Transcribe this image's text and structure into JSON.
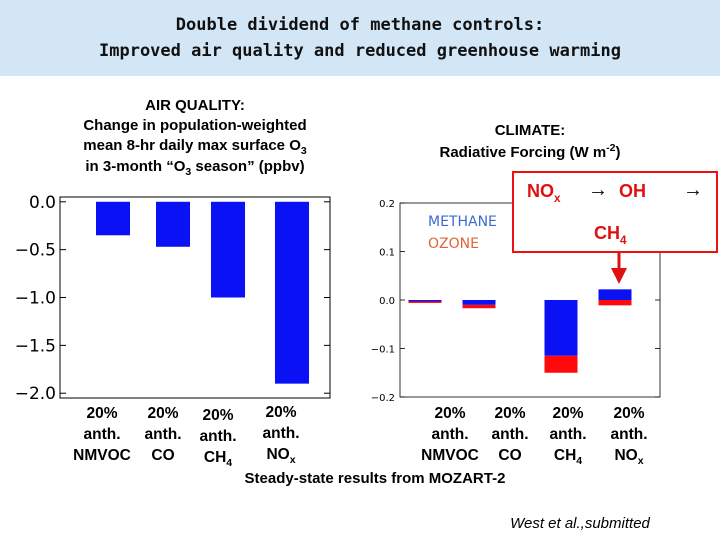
{
  "slide": {
    "title_line1": "Double dividend of methane controls:",
    "title_line2": "Improved air quality and reduced greenhouse warming",
    "footnote": "Steady-state results from MOZART-2",
    "citation": "West et al.,submitted"
  },
  "air_quality": {
    "heading_line1": "AIR QUALITY:",
    "heading_line2": "Change in population-weighted",
    "heading_line3a": "mean 8-hr daily max surface O",
    "heading_line3b": "3",
    "heading_line4a": "in 3-month “O",
    "heading_line4b": "3",
    "heading_line4c": " season” (ppbv)"
  },
  "climate": {
    "heading_line1": "CLIMATE:",
    "heading_line2a": "Radiative Forcing (W m",
    "heading_line2b": "-2",
    "heading_line2c": ")",
    "legend_methane": "METHANE",
    "legend_ozone": "OZONE"
  },
  "cascade": {
    "nox": "NO",
    "nox_sub": "x",
    "arrow1": "→",
    "oh": "OH",
    "arrow2": "→",
    "ch4": "CH",
    "ch4_sub": "4"
  },
  "categories": {
    "pct": "20%",
    "anth": "anth.",
    "nmvoc": "NMVOC",
    "co": "CO",
    "ch4": "CH",
    "ch4_sub": "4",
    "nox": "NO",
    "nox_sub": "x"
  },
  "chart_data": [
    {
      "type": "bar",
      "categories": [
        "20% anth. NMVOC",
        "20% anth. CO",
        "20% anth. CH4",
        "20% anth. NOx"
      ],
      "values": [
        -0.35,
        -0.47,
        -1.0,
        -1.9
      ],
      "ylim": [
        -2.05,
        0.05
      ],
      "yticks": [
        0.0,
        -0.5,
        -1.0,
        -1.5,
        -2.0
      ],
      "ytick_labels": [
        "0.0",
        "−0.5",
        "−1.0",
        "−1.5",
        "−2.0"
      ],
      "grid": false,
      "colors": {
        "bar": "#0a12f5"
      }
    },
    {
      "type": "bar",
      "stacked": true,
      "categories": [
        "20% anth. NMVOC",
        "20% anth. CO",
        "20% anth. CH4",
        "20% anth. NOx"
      ],
      "series": [
        {
          "name": "METHANE",
          "values": [
            -0.003,
            -0.01,
            -0.115,
            0.022
          ]
        },
        {
          "name": "OZONE",
          "values": [
            -0.001,
            -0.007,
            -0.035,
            -0.011
          ]
        }
      ],
      "ylim": [
        -0.2,
        0.2
      ],
      "yticks": [
        0.2,
        0.1,
        0.0,
        -0.1,
        -0.2
      ],
      "ytick_labels": [
        "0.2",
        "0.1",
        "0.0",
        "−0.1",
        "−0.2"
      ],
      "grid": false,
      "colors": {
        "METHANE": "#0a12f5",
        "OZONE": "#ff0a0a",
        "legend_methane": "#3c6bd0",
        "legend_ozone": "#e0653c"
      }
    }
  ]
}
